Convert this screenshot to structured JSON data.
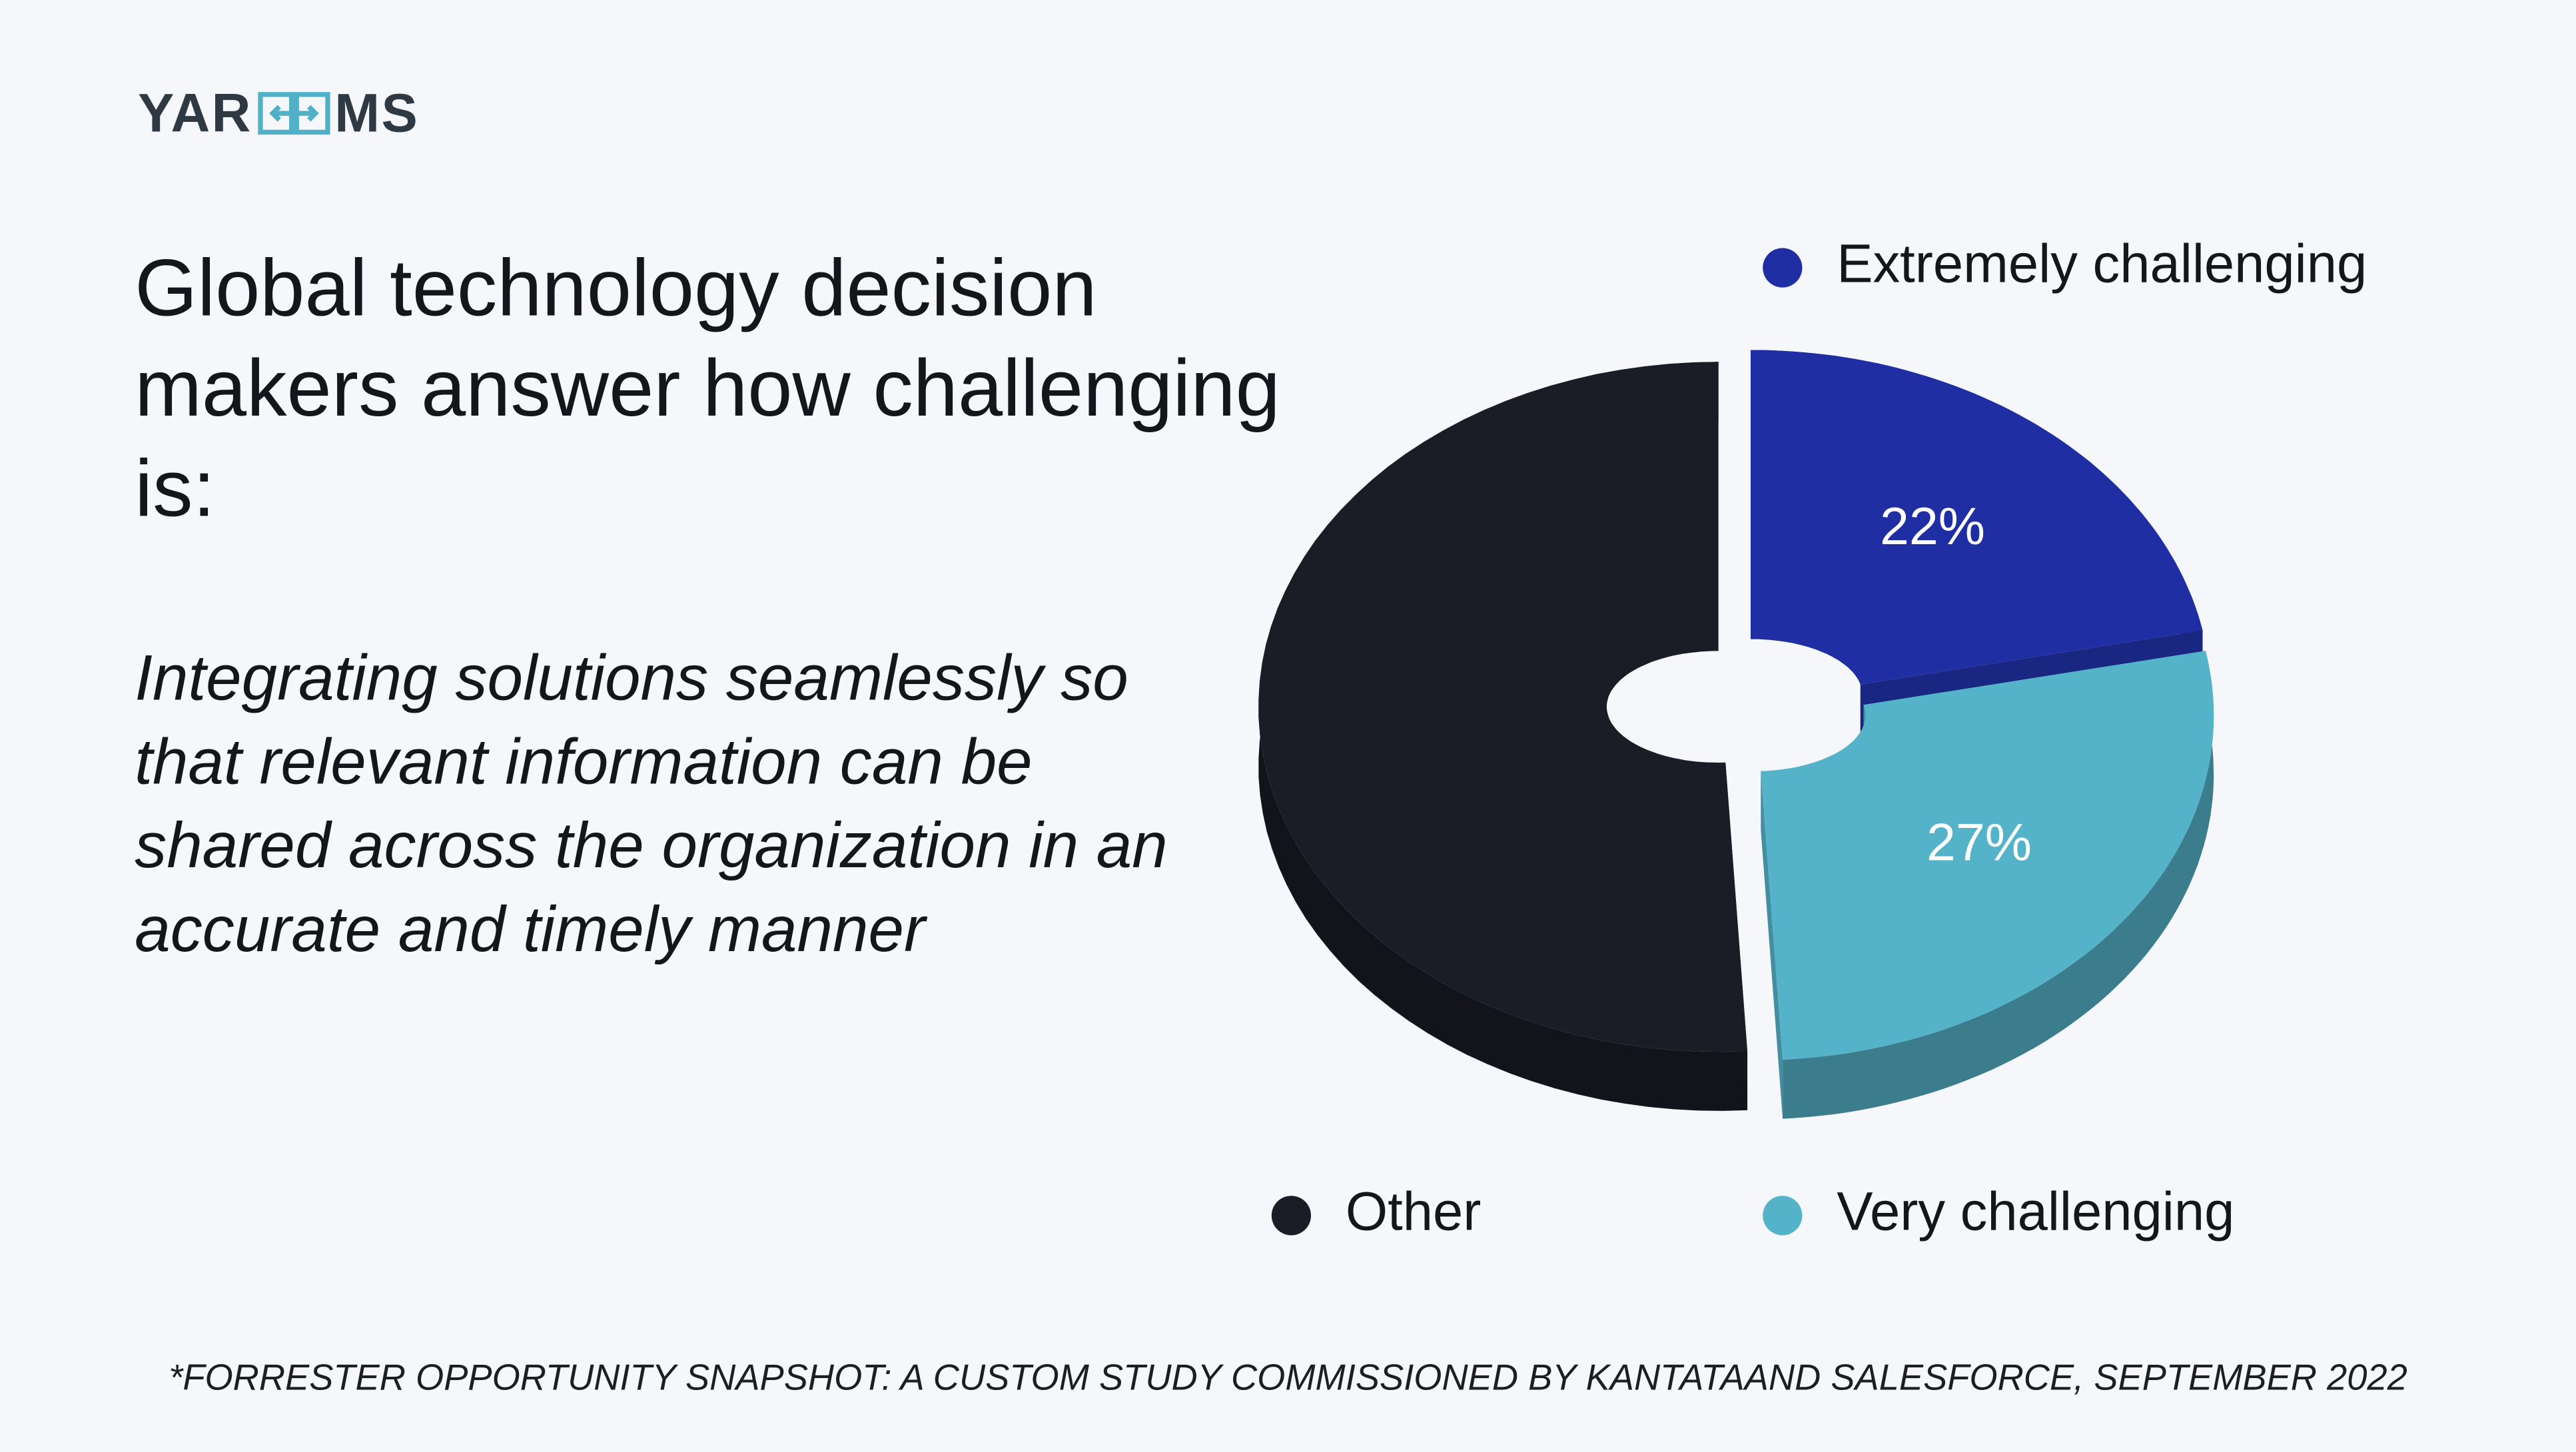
{
  "logo": {
    "left": "YAR",
    "right": "MS"
  },
  "title": "Global technology decision makers answer how challenging is:",
  "subtitle": "Integrating solutions seamlessly so that relevant information can be shared across the organization in an accurate and timely manner",
  "footnote": "*FORRESTER OPPORTUNITY SNAPSHOT: A CUSTOM STUDY COMMISSIONED BY KANTATAAND SALESFORCE, SEPTEMBER 2022",
  "chart_data": {
    "type": "pie",
    "categories": [
      "Extremely challenging",
      "Very challenging",
      "Other"
    ],
    "values": [
      22,
      27,
      51
    ],
    "value_labels": [
      "22%",
      "27%",
      null
    ],
    "colors": [
      "#1f2fa3",
      "#54b3c9",
      "#1b1d26"
    ]
  }
}
